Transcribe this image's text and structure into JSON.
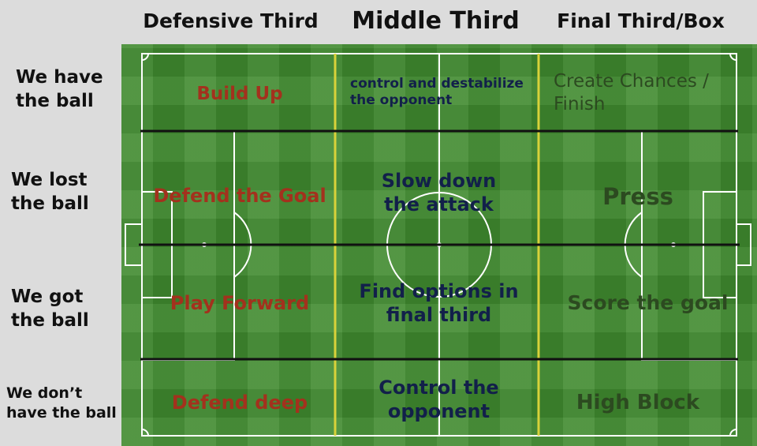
{
  "columns": {
    "defensive": "Defensive Third",
    "middle": "Middle Third",
    "final": "Final Third/Box"
  },
  "rows": {
    "have_ball": "We have the ball",
    "lost_ball": "We lost the ball",
    "got_ball": "We got the ball",
    "dont_have": "We don’t have the ball"
  },
  "cells": {
    "have_ball": {
      "defensive": "Build Up",
      "middle": "control and destabilize the opponent",
      "final": "Create Chances / Finish"
    },
    "lost_ball": {
      "defensive": "Defend the Goal",
      "middle": "Slow down the attack",
      "final": "Press"
    },
    "got_ball": {
      "defensive": "Play Forward",
      "middle": "Find options in final third",
      "final": "Score the goal"
    },
    "dont_have": {
      "defensive": "Defend deep",
      "middle": "Control the opponent",
      "final": "High Block"
    }
  },
  "colors": {
    "pitch_green": "#3f8a2e",
    "pitch_lines": "#ffffff",
    "third_divider": "#d8d23a",
    "row_divider": "#111111",
    "defensive_text": "#a3311d",
    "middle_text": "#12204a",
    "final_text": "#2c4a20"
  }
}
